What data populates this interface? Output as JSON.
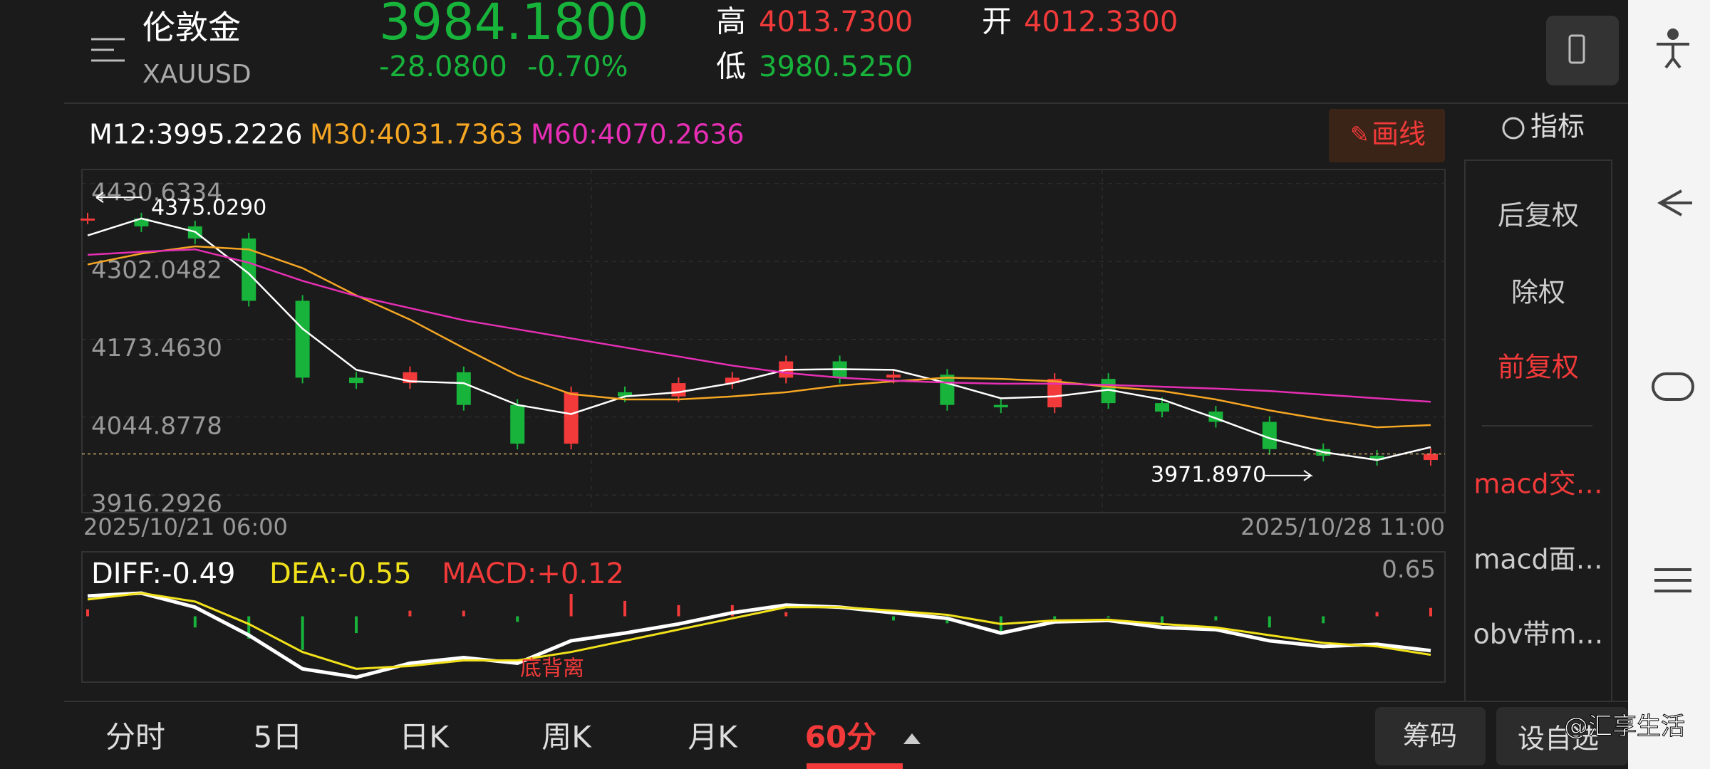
{
  "header": {
    "name": "伦敦金",
    "code": "XAUUSD",
    "price": "3984.1800",
    "change": "-28.0800",
    "change_pct": "-0.70%",
    "high_label": "高",
    "high": "4013.7300",
    "low_label": "低",
    "low": "3980.5250",
    "open_label": "开",
    "open": "4012.3300"
  },
  "toolbar": {
    "draw": "画线",
    "indicator": "指标"
  },
  "side_menu": [
    "后复权",
    "除权",
    "前复权",
    "macd交…",
    "macd面…",
    "obv带m…"
  ],
  "tabs": [
    "分时",
    "5日",
    "日K",
    "周K",
    "月K",
    "60分"
  ],
  "buttons": [
    "筹码",
    "设自选"
  ],
  "watermark": "@汇享生活",
  "chart_data": [
    {
      "type": "candlestick",
      "up_color": "#f23a3a",
      "down_color": "#17b33b",
      "ylim": [
        3887,
        4454
      ],
      "yticks": [
        3916.2926,
        4044.8778,
        {
          "value": 4173.463,
          "label": "4173.4630"
        },
        4302.0482,
        4430.6334
      ],
      "x_labels": [
        "2025/10/21 06:00",
        "2025/10/28 11:00"
      ],
      "closes": [
        4373,
        4360,
        4340,
        4237,
        4110,
        4101,
        4119,
        4065,
        4001,
        4086,
        4079,
        4101,
        4110,
        4137,
        4110,
        4115,
        4065,
        4061,
        4108,
        4068,
        4054,
        4037,
        3992,
        3981,
        3974,
        3984
      ],
      "series": [
        {
          "name": "M12:3995.2226",
          "color": "#ffffff",
          "values": [
            4345,
            4373,
            4351,
            4282,
            4191,
            4123,
            4104,
            4101,
            4065,
            4050,
            4079,
            4086,
            4101,
            4123,
            4124,
            4123,
            4101,
            4076,
            4079,
            4090,
            4074,
            4043,
            4010,
            3987,
            3974,
            3995.2226
          ]
        },
        {
          "name": "M30:4031.7363",
          "color": "#f5a623",
          "values": [
            4297,
            4315,
            4327,
            4322,
            4291,
            4246,
            4206,
            4159,
            4114,
            4083,
            4074,
            4074,
            4079,
            4086,
            4097,
            4104,
            4110,
            4108,
            4104,
            4095,
            4088,
            4074,
            4056,
            4041,
            4028,
            4031.7363
          ]
        },
        {
          "name": "M60:4070.2636",
          "color": "#e62fb4",
          "values": [
            4313,
            4318,
            4322,
            4300,
            4270,
            4245,
            4225,
            4205,
            4190,
            4175,
            4160,
            4145,
            4130,
            4118,
            4110,
            4105,
            4102,
            4100,
            4100,
            4098,
            4095,
            4092,
            4088,
            4082,
            4076,
            4070.2636
          ]
        }
      ],
      "annotations": [
        {
          "value": 4375.029,
          "label": "4375.0290"
        },
        {
          "value": 3971.897,
          "label": "3971.8970"
        }
      ]
    },
    {
      "type": "macd",
      "ylim": [
        -0.94,
        0.92
      ],
      "yticks": [
        0.65
      ],
      "series": [
        {
          "name": "DIFF:-0.49",
          "color": "#ffffff",
          "values": [
            0.29,
            0.33,
            0.13,
            -0.27,
            -0.75,
            -0.87,
            -0.67,
            -0.59,
            -0.67,
            -0.35,
            -0.24,
            -0.11,
            0.05,
            0.16,
            0.13,
            0.05,
            -0.03,
            -0.24,
            -0.08,
            -0.06,
            -0.16,
            -0.19,
            -0.35,
            -0.43,
            -0.4,
            -0.49
          ]
        },
        {
          "name": "DEA:-0.55",
          "color": "#f2e21b",
          "values": [
            0.24,
            0.33,
            0.21,
            -0.11,
            -0.51,
            -0.75,
            -0.71,
            -0.63,
            -0.63,
            -0.51,
            -0.35,
            -0.19,
            -0.03,
            0.13,
            0.13,
            0.08,
            0.02,
            -0.11,
            -0.06,
            -0.05,
            -0.11,
            -0.16,
            -0.27,
            -0.38,
            -0.43,
            -0.55
          ]
        },
        {
          "name": "MACD:+0.12",
          "color": "#f23a3a",
          "down_color": "#17b33b",
          "bars": true,
          "values": [
            0.1,
            0,
            -0.16,
            -0.32,
            -0.48,
            -0.24,
            0.08,
            0.08,
            -0.08,
            0.32,
            0.22,
            0.16,
            0.16,
            0.06,
            0,
            -0.06,
            -0.1,
            -0.26,
            -0.04,
            -0.02,
            -0.1,
            -0.06,
            -0.16,
            -0.1,
            0.06,
            0.12
          ]
        }
      ],
      "annotation": "底背离"
    }
  ]
}
